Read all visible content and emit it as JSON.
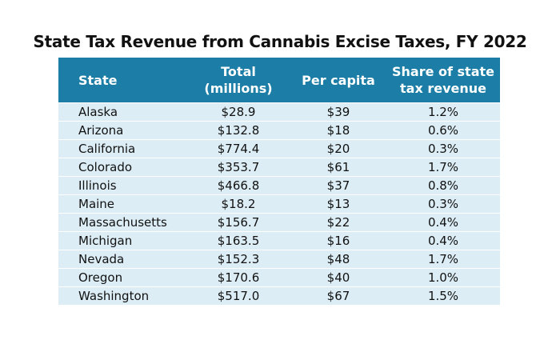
{
  "title": "State Tax Revenue from Cannabis Excise Taxes, FY 2022",
  "table": {
    "header": [
      [
        "State"
      ],
      [
        "Total",
        "(millions)"
      ],
      [
        "Per capita"
      ],
      [
        "Share of state",
        "tax revenue"
      ]
    ],
    "rows": [
      [
        "Alaska",
        "$28.9",
        "$39",
        "1.2%"
      ],
      [
        "Arizona",
        "$132.8",
        "$18",
        "0.6%"
      ],
      [
        "California",
        "$774.4",
        "$20",
        "0.3%"
      ],
      [
        "Colorado",
        "$353.7",
        "$61",
        "1.7%"
      ],
      [
        "Illinois",
        "$466.8",
        "$37",
        "0.8%"
      ],
      [
        "Maine",
        "$18.2",
        "$13",
        "0.3%"
      ],
      [
        "Massachusetts",
        "$156.7",
        "$22",
        "0.4%"
      ],
      [
        "Michigan",
        "$163.5",
        "$16",
        "0.4%"
      ],
      [
        "Nevada",
        "$152.3",
        "$48",
        "1.7%"
      ],
      [
        "Oregon",
        "$170.6",
        "$40",
        "1.0%"
      ],
      [
        "Washington",
        "$517.0",
        "$67",
        "1.5%"
      ]
    ]
  }
}
